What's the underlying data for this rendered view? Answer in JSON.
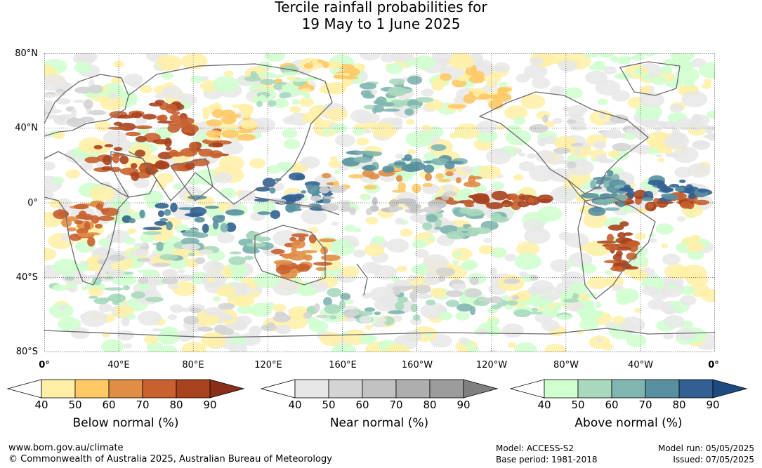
{
  "title": {
    "line1": "Tercile rainfall probabilities for",
    "line2": "19 May to 1 June 2025"
  },
  "map": {
    "lat_labels": [
      "80°N",
      "40°N",
      "0°",
      "40°S",
      "80°S"
    ],
    "lon_labels": [
      "0°",
      "40°E",
      "80°E",
      "120°E",
      "160°E",
      "160°W",
      "120°W",
      "80°W",
      "40°W",
      "0°"
    ],
    "colors": {
      "below": [
        "#fff0a6",
        "#ffc966",
        "#e08d45",
        "#c8602f",
        "#a9431f",
        "#8a2e17"
      ],
      "near": [
        "#e7e7e7",
        "#d4d4d4",
        "#c2c2c2",
        "#aeaeae",
        "#9b9b9b",
        "#808080"
      ],
      "above": [
        "#cfffcf",
        "#a8d9be",
        "#80b5b0",
        "#5890a0",
        "#336092",
        "#1d4a80"
      ],
      "land_outline": "#6b6b6b",
      "grid": "#555555"
    }
  },
  "colorbars": [
    {
      "title": "Below normal (%)",
      "ticks": [
        "40",
        "50",
        "60",
        "70",
        "80",
        "90"
      ]
    },
    {
      "title": "Near normal (%)",
      "ticks": [
        "40",
        "50",
        "60",
        "70",
        "80",
        "90"
      ]
    },
    {
      "title": "Above normal (%)",
      "ticks": [
        "40",
        "50",
        "60",
        "70",
        "80",
        "90"
      ]
    }
  ],
  "footer": {
    "url": "www.bom.gov.au/climate",
    "copyright": "© Commonwealth of Australia 2025, Australian Bureau of Meteorology",
    "model": "Model: ACCESS-S2",
    "base_period": "Base period: 1981-2018",
    "model_run": "Model run: 05/05/2025",
    "issued": "Issued: 07/05/2025"
  }
}
